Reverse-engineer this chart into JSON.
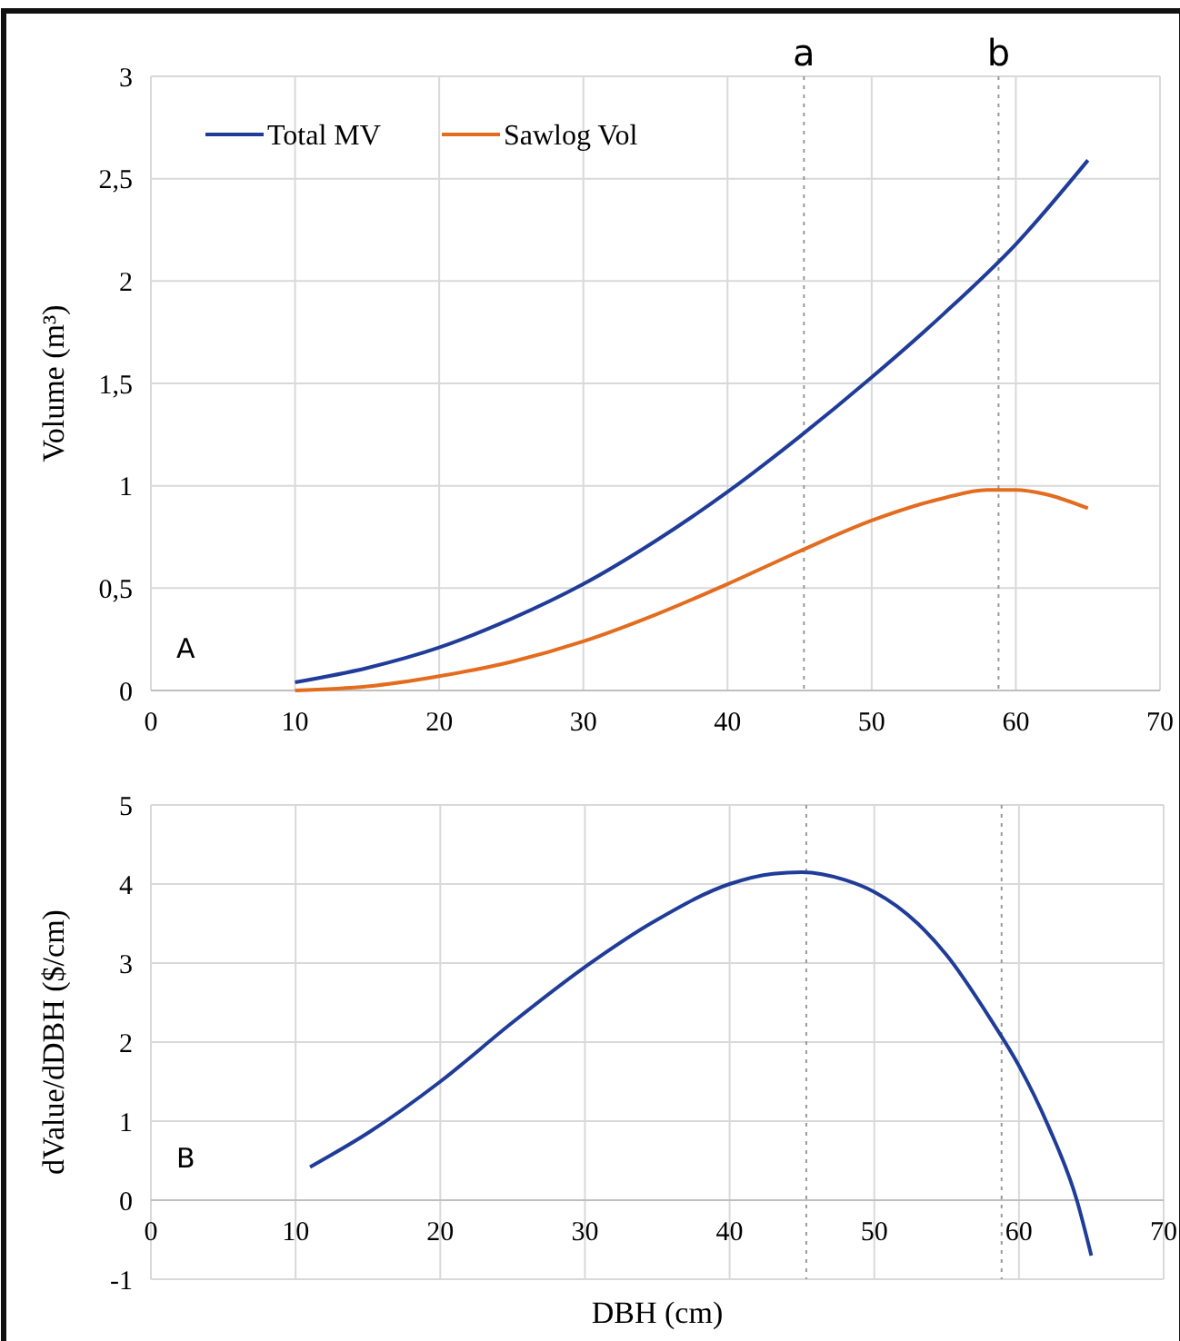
{
  "chart_data": [
    {
      "type": "line",
      "ylabel": "Volume (m³)",
      "xlim": [
        0,
        70
      ],
      "xticks": [
        0,
        10,
        20,
        30,
        40,
        50,
        60,
        70
      ],
      "ylim": [
        0,
        3
      ],
      "yticks": [
        0,
        {
          "value": 0.5,
          "label": "0,5"
        },
        1,
        {
          "value": 1.5,
          "label": "1,5"
        },
        2,
        {
          "value": 2.5,
          "label": "2,5"
        },
        3
      ],
      "grid": true,
      "legend": "top left",
      "annotations": [
        "A"
      ],
      "ref_lines": [
        {
          "axis": "x",
          "value": 45.3,
          "label": "a",
          "line_style": "dotted",
          "color": "#999999"
        },
        {
          "axis": "x",
          "value": 58.8,
          "label": "b",
          "line_style": "dotted",
          "color": "#999999"
        }
      ],
      "series": [
        {
          "name": "Total MV",
          "color": "#1f3c99",
          "x": [
            10,
            15,
            20,
            25,
            30,
            35,
            40,
            45,
            50,
            55,
            60,
            65
          ],
          "values": [
            0.04,
            0.11,
            0.21,
            0.35,
            0.52,
            0.73,
            0.97,
            1.24,
            1.53,
            1.84,
            2.18,
            2.59
          ]
        },
        {
          "name": "Sawlog Vol",
          "color": "#e36c1e",
          "x": [
            10,
            15,
            20,
            25,
            30,
            35,
            40,
            45,
            50,
            55,
            58,
            60,
            62,
            65
          ],
          "values": [
            0,
            0.02,
            0.07,
            0.14,
            0.24,
            0.37,
            0.52,
            0.68,
            0.83,
            0.94,
            0.98,
            0.98,
            0.96,
            0.89
          ]
        }
      ]
    },
    {
      "type": "line",
      "xlabel": "DBH (cm)",
      "ylabel": "dValue/dDBH ($/cm)",
      "xlim": [
        0,
        70
      ],
      "xticks": [
        0,
        10,
        20,
        30,
        40,
        50,
        60,
        70
      ],
      "ylim": [
        -1,
        5
      ],
      "yticks": [
        -1,
        0,
        1,
        2,
        3,
        4,
        5
      ],
      "grid": true,
      "annotations": [
        "B"
      ],
      "ref_lines": [
        {
          "axis": "x",
          "value": 45.3,
          "line_style": "dotted",
          "color": "#999999"
        },
        {
          "axis": "x",
          "value": 58.8,
          "line_style": "dotted",
          "color": "#999999"
        }
      ],
      "series": [
        {
          "color": "#1f3c99",
          "x": [
            11,
            15,
            20,
            25,
            30,
            35,
            40,
            43,
            45,
            48,
            50,
            53,
            55,
            58,
            60,
            62,
            64,
            65
          ],
          "values": [
            0.42,
            0.85,
            1.5,
            2.25,
            2.95,
            3.55,
            4.0,
            4.13,
            4.15,
            4.05,
            3.9,
            3.5,
            3.1,
            2.3,
            1.7,
            0.95,
            0,
            -0.7
          ]
        }
      ]
    }
  ]
}
